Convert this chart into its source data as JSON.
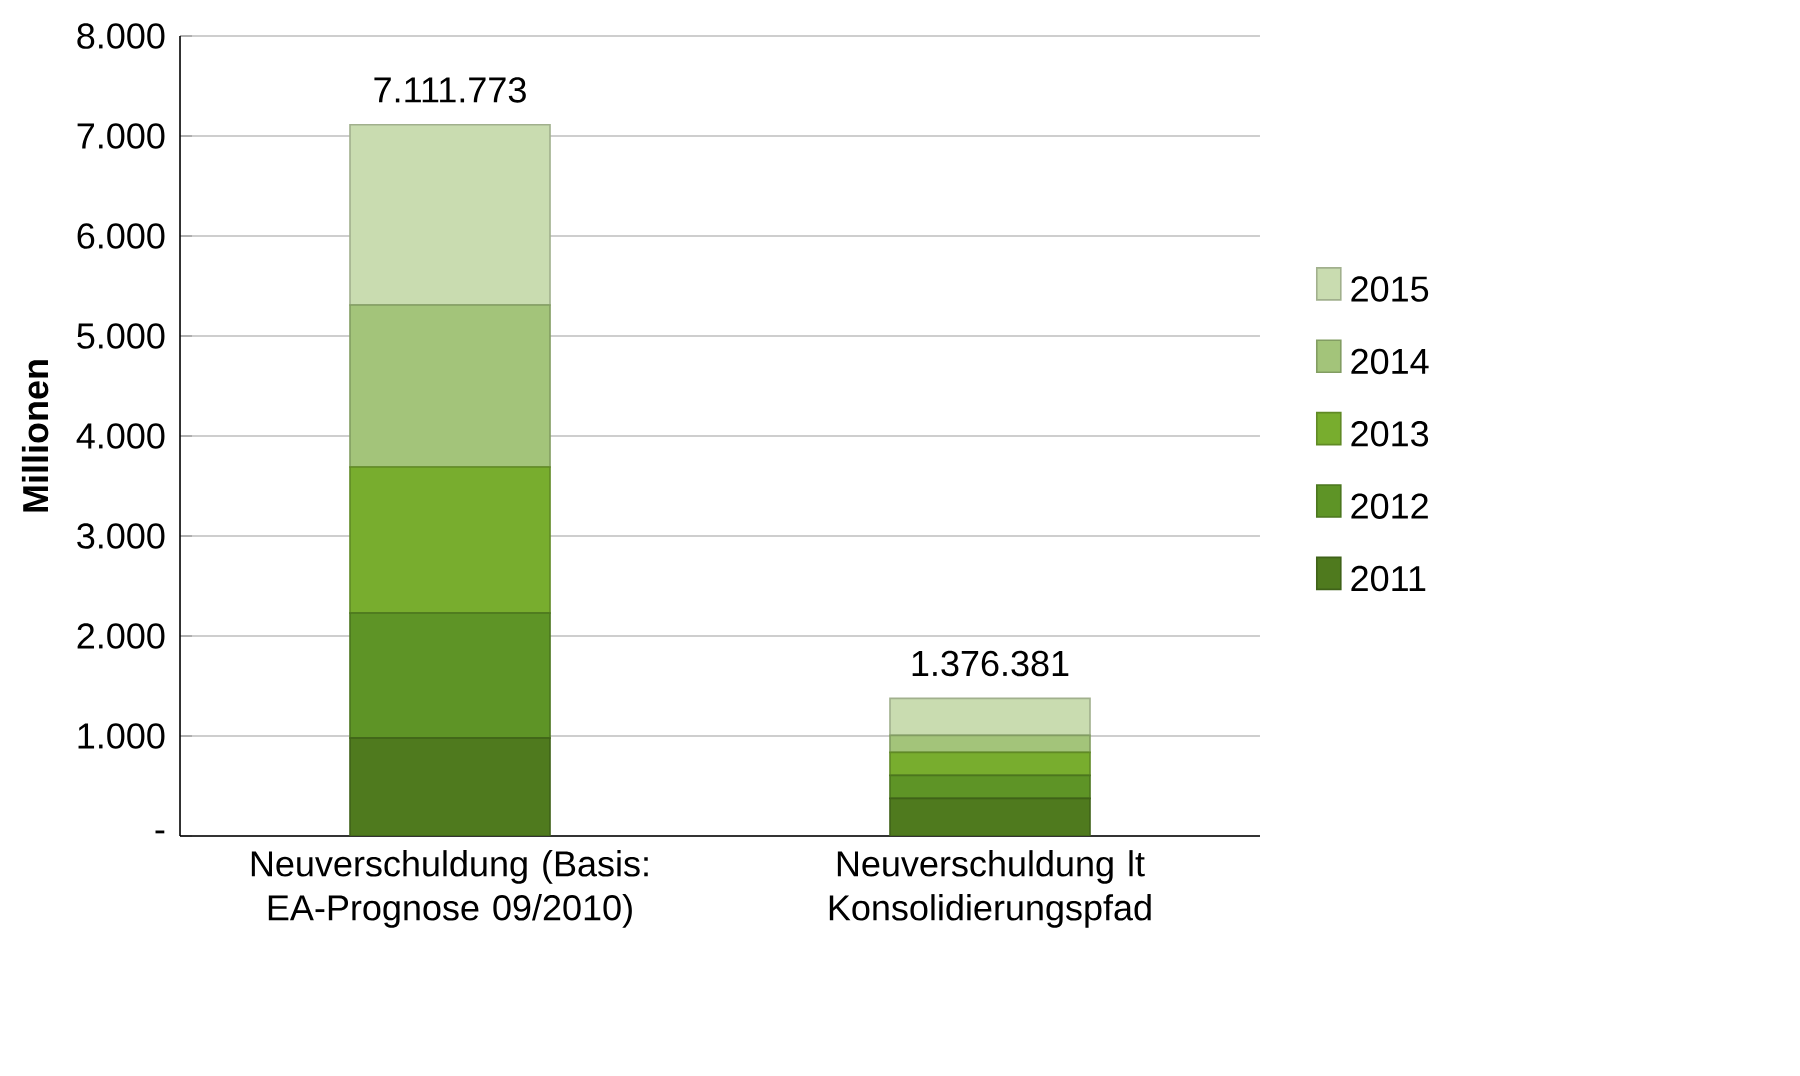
{
  "chart_data": {
    "type": "bar",
    "stacked": true,
    "ylabel": "Millionen",
    "categories": [
      "Neuverschuldung (Basis: EA-Prognose 09/2010)",
      "Neuverschuldung lt Konsolidierungspfad"
    ],
    "series": [
      {
        "name": "2011",
        "color": "#4f7a1e",
        "values": [
          980,
          376.381
        ]
      },
      {
        "name": "2012",
        "color": "#5e9426",
        "values": [
          1250,
          230
        ]
      },
      {
        "name": "2013",
        "color": "#78ad2e",
        "values": [
          1460,
          230
        ]
      },
      {
        "name": "2014",
        "color": "#a3c47a",
        "values": [
          1620,
          170
        ]
      },
      {
        "name": "2015",
        "color": "#c9dcb0",
        "values": [
          1801.773,
          370
        ]
      }
    ],
    "totals": [
      "7.111.773",
      "1.376.381"
    ],
    "ylim": [
      0,
      8000
    ],
    "yticks": [
      {
        "value": 0,
        "label": "-"
      },
      {
        "value": 1000,
        "label": "1.000"
      },
      {
        "value": 2000,
        "label": "2.000"
      },
      {
        "value": 3000,
        "label": "3.000"
      },
      {
        "value": 4000,
        "label": "4.000"
      },
      {
        "value": 5000,
        "label": "5.000"
      },
      {
        "value": 6000,
        "label": "6.000"
      },
      {
        "value": 7000,
        "label": "7.000"
      },
      {
        "value": 8000,
        "label": "8.000"
      }
    ],
    "grid": "y",
    "legend": "right"
  }
}
